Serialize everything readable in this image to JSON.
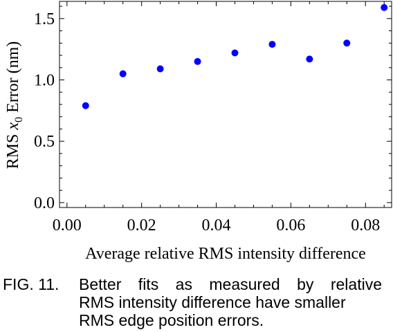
{
  "chart_data": {
    "type": "scatter",
    "xlabel": "Average relative RMS intensity difference",
    "ylabel": {
      "prefix": "RMS ",
      "var": "x",
      "sub": "0",
      "suffix": " Error (nm)"
    },
    "xlim": [
      -0.002,
      0.087
    ],
    "ylim": [
      -0.04,
      1.64
    ],
    "x_ticks": [
      0.0,
      0.02,
      0.04,
      0.06,
      0.08
    ],
    "x_tick_labels": [
      "0.00",
      "0.02",
      "0.04",
      "0.06",
      "0.08"
    ],
    "y_ticks": [
      0.0,
      0.5,
      1.0,
      1.5
    ],
    "y_tick_labels": [
      "0.0",
      "0.5",
      "1.0",
      "1.5"
    ],
    "grid": false,
    "marker_color": "#0000ff",
    "series": [
      {
        "x": [
          0.005,
          0.015,
          0.025,
          0.035,
          0.045,
          0.055,
          0.065,
          0.075,
          0.085
        ],
        "y": [
          0.79,
          1.05,
          1.09,
          1.15,
          1.22,
          1.29,
          1.17,
          1.3,
          1.59
        ]
      }
    ]
  },
  "caption": {
    "label": "FIG. 11.",
    "lines": [
      "Better fits as measured by relative",
      "RMS intensity difference have smaller",
      "RMS edge position errors."
    ]
  }
}
